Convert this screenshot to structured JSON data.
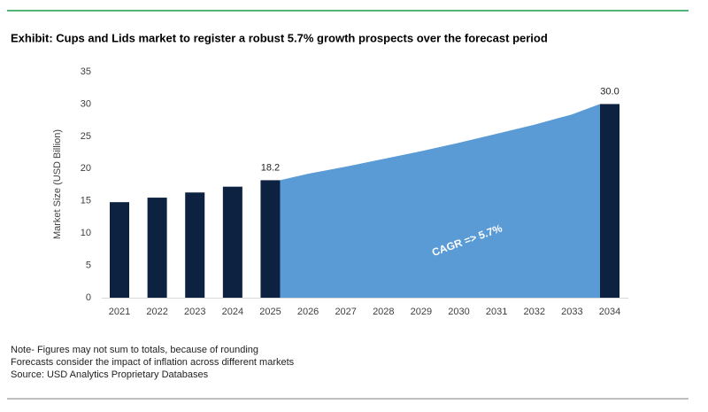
{
  "chart_data": {
    "type": "bar",
    "title": "Exhibit: Cups and Lids market to register a robust 5.7% growth prospects over the forecast period",
    "y_label": "Market Size (USD Billion)",
    "categories": [
      "2021",
      "2022",
      "2023",
      "2024",
      "2025",
      "2026",
      "2027",
      "2028",
      "2029",
      "2030",
      "2031",
      "2032",
      "2033",
      "2034"
    ],
    "series": [
      {
        "type": "bar",
        "color": "#0d2240",
        "values": [
          14.8,
          15.5,
          16.3,
          17.2,
          18.2,
          null,
          null,
          null,
          null,
          null,
          null,
          null,
          null,
          30.0
        ],
        "value_labels": [
          null,
          null,
          null,
          null,
          "18.2",
          null,
          null,
          null,
          null,
          null,
          null,
          null,
          null,
          "30.0"
        ]
      },
      {
        "type": "area",
        "color": "#5b9bd5",
        "values": [
          null,
          null,
          null,
          null,
          18.2,
          19.2,
          20.3,
          21.5,
          22.7,
          24.0,
          25.4,
          26.8,
          28.4,
          30.0
        ]
      }
    ],
    "annotation": "CAGR => 5.7%",
    "ylim": [
      0,
      35
    ],
    "yticks": [
      0,
      5,
      10,
      15,
      20,
      25,
      30,
      35
    ],
    "grid": false,
    "notes": [
      "Note- Figures may not sum to totals, because of rounding",
      "Forecasts consider the impact of inflation across different markets",
      "Source: USD Analytics Proprietary Databases"
    ]
  }
}
